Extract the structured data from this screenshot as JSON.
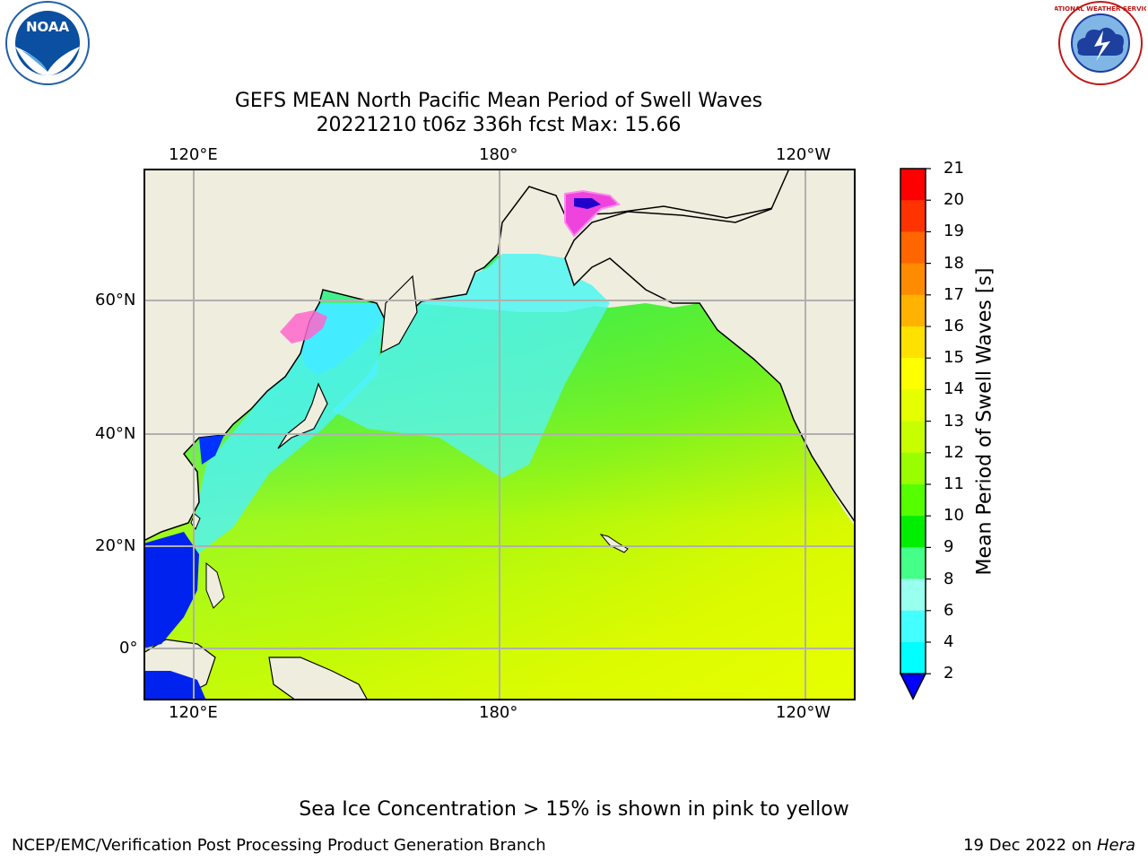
{
  "header": {
    "title_line1": "GEFS MEAN North Pacific Mean Period of Swell Waves",
    "title_line2": "20221210 t06z 336h fcst   Max: 15.66"
  },
  "logos": {
    "left": {
      "icon": "noaa-logo",
      "text": "NOAA"
    },
    "right": {
      "icon": "national-weather-service-logo",
      "text": "NATIONAL WEATHER SERVICE"
    }
  },
  "map": {
    "lon_ticks_top": [
      "120°E",
      "180°",
      "120°W"
    ],
    "lon_ticks_bottom": [
      "120°E",
      "180°",
      "120°W"
    ],
    "lat_ticks": [
      "60°N",
      "40°N",
      "20°N",
      "0°"
    ],
    "colors": {
      "land": "#efedde",
      "coast": "#000000",
      "grid": "#b0b0b0"
    }
  },
  "colorbar": {
    "label": "Mean Period of Swell Waves [s]",
    "ticks": [
      "21",
      "20",
      "19",
      "18",
      "17",
      "16",
      "15",
      "14",
      "13",
      "12",
      "11",
      "10",
      "9",
      "8",
      "6",
      "4",
      "2"
    ],
    "colors": [
      "#ff0000",
      "#ff3300",
      "#ff6600",
      "#ff8c00",
      "#ffb300",
      "#ffe100",
      "#ffff00",
      "#e6ff00",
      "#c8ff00",
      "#99ff00",
      "#55ff00",
      "#00ee00",
      "#44ff88",
      "#99ffee",
      "#44ffff",
      "#00ffff",
      "#00e0ff",
      "#0088ff",
      "#0000ff"
    ]
  },
  "footer": {
    "note": "Sea Ice Concentration > 15% is shown in pink to yellow",
    "credit": "NCEP/EMC/Verification Post Processing Product Generation Branch",
    "date_prefix": "19 Dec 2022 on ",
    "machine": "Hera"
  }
}
